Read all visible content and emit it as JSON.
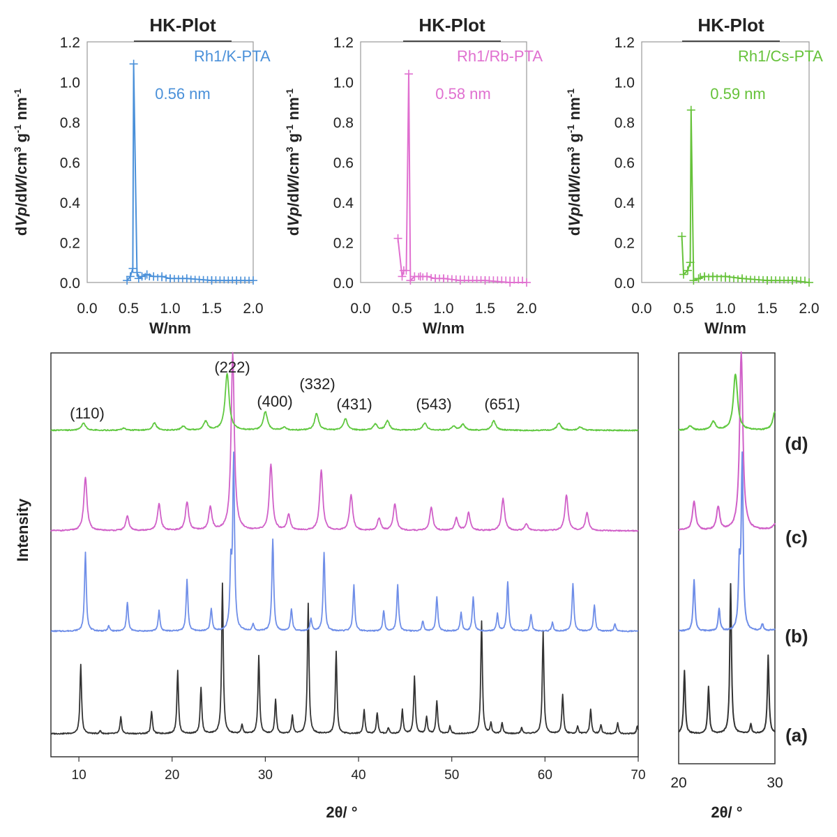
{
  "chart_data": [
    {
      "type": "line",
      "title": "HK-Plot",
      "xlabel": "W/nm",
      "ylabel_parts": [
        "d",
        "Vp",
        "/d",
        "W",
        "/cm",
        "3",
        " g",
        "-1",
        " nm",
        "-1"
      ],
      "xlim": [
        0.0,
        2.0
      ],
      "ylim": [
        0.0,
        1.2
      ],
      "xticks": [
        "0.0",
        "0.5",
        "1.0",
        "1.5",
        "2.0"
      ],
      "yticks": [
        "0.0",
        "0.2",
        "0.4",
        "0.6",
        "0.8",
        "1.0",
        "1.2"
      ],
      "color": "#4a90d9",
      "series": [
        {
          "name": "Rh1/K-PTA",
          "x": [
            0.48,
            0.52,
            0.55,
            0.56,
            0.6,
            0.62,
            0.66,
            0.72,
            0.8,
            0.9,
            1.0,
            1.2,
            1.5,
            1.8,
            2.0
          ],
          "y": [
            0.01,
            0.03,
            0.07,
            1.09,
            0.05,
            0.02,
            0.03,
            0.04,
            0.03,
            0.03,
            0.02,
            0.02,
            0.01,
            0.01,
            0.01
          ]
        }
      ],
      "annotation": "0.56 nm"
    },
    {
      "type": "line",
      "title": "HK-Plot",
      "xlabel": "W/nm",
      "ylabel_parts": [
        "d",
        "Vp",
        "/d",
        "W",
        "/cm",
        "3",
        " g",
        "-1",
        " nm",
        "-1"
      ],
      "xlim": [
        0.0,
        2.0
      ],
      "ylim": [
        0.0,
        1.2
      ],
      "xticks": [
        "0.0",
        "0.5",
        "1.0",
        "1.5",
        "2.0"
      ],
      "yticks": [
        "0.0",
        "0.2",
        "0.4",
        "0.6",
        "0.8",
        "1.0",
        "1.2"
      ],
      "color": "#e070d0",
      "series": [
        {
          "name": "Rh1/Rb-PTA",
          "x": [
            0.45,
            0.5,
            0.52,
            0.55,
            0.58,
            0.6,
            0.65,
            0.72,
            0.8,
            0.9,
            1.0,
            1.2,
            1.5,
            1.8,
            2.0
          ],
          "y": [
            0.22,
            0.03,
            0.06,
            0.06,
            1.04,
            0.01,
            0.03,
            0.03,
            0.03,
            0.02,
            0.02,
            0.01,
            0.01,
            0.0,
            0.0
          ]
        }
      ],
      "annotation": "0.58 nm"
    },
    {
      "type": "line",
      "title": "HK-Plot",
      "xlabel": "W/nm",
      "ylabel_parts": [
        "d",
        "Vp",
        "/d",
        "W",
        "/cm",
        "3",
        " g",
        "-1",
        " nm",
        "-1"
      ],
      "xlim": [
        0.0,
        2.0
      ],
      "ylim": [
        0.0,
        1.2
      ],
      "xticks": [
        "0.0",
        "0.5",
        "1.0",
        "1.5",
        "2.0"
      ],
      "yticks": [
        "0.0",
        "0.2",
        "0.4",
        "0.6",
        "0.8",
        "1.0",
        "1.2"
      ],
      "color": "#66c23a",
      "series": [
        {
          "name": "Rh1/Cs-PTA",
          "x": [
            0.48,
            0.5,
            0.55,
            0.58,
            0.59,
            0.62,
            0.68,
            0.75,
            0.85,
            1.0,
            1.2,
            1.5,
            1.8,
            2.0
          ],
          "y": [
            0.23,
            0.04,
            0.06,
            0.1,
            0.86,
            0.01,
            0.02,
            0.03,
            0.03,
            0.03,
            0.02,
            0.01,
            0.01,
            0.0
          ]
        }
      ],
      "annotation": "0.59 nm"
    },
    {
      "type": "line",
      "xlabel": "2θ/ °",
      "ylabel": "Intensity",
      "xlim": [
        7,
        70
      ],
      "xticks": [
        "10",
        "20",
        "30",
        "40",
        "50",
        "60",
        "70"
      ],
      "series": [
        {
          "name": "(a)",
          "color": "#333333",
          "peaks": [
            [
              10.2,
              0.46
            ],
            [
              12.3,
              0.02
            ],
            [
              14.5,
              0.11
            ],
            [
              17.8,
              0.15
            ],
            [
              20.6,
              0.42
            ],
            [
              23.1,
              0.31
            ],
            [
              25.4,
              1.0
            ],
            [
              27.5,
              0.06
            ],
            [
              29.3,
              0.52
            ],
            [
              31.1,
              0.23
            ],
            [
              32.9,
              0.12
            ],
            [
              34.6,
              0.87
            ],
            [
              37.6,
              0.55
            ],
            [
              40.6,
              0.16
            ],
            [
              42.0,
              0.14
            ],
            [
              43.2,
              0.04
            ],
            [
              44.7,
              0.16
            ],
            [
              46.0,
              0.38
            ],
            [
              47.3,
              0.11
            ],
            [
              48.4,
              0.22
            ],
            [
              49.8,
              0.05
            ],
            [
              53.2,
              0.75
            ],
            [
              54.2,
              0.07
            ],
            [
              55.4,
              0.07
            ],
            [
              57.5,
              0.04
            ],
            [
              59.8,
              0.68
            ],
            [
              61.9,
              0.26
            ],
            [
              63.5,
              0.05
            ],
            [
              64.9,
              0.16
            ],
            [
              66.0,
              0.06
            ],
            [
              67.8,
              0.07
            ],
            [
              69.9,
              0.05
            ]
          ]
        },
        {
          "name": "(b)",
          "color": "#6f8ee8",
          "peaks": [
            [
              10.7,
              0.46
            ],
            [
              13.2,
              0.03
            ],
            [
              15.2,
              0.17
            ],
            [
              18.6,
              0.12
            ],
            [
              21.6,
              0.3
            ],
            [
              24.2,
              0.13
            ],
            [
              26.3,
              0.35
            ],
            [
              26.6,
              1.0
            ],
            [
              28.7,
              0.04
            ],
            [
              30.8,
              0.54
            ],
            [
              32.8,
              0.13
            ],
            [
              34.9,
              0.07
            ],
            [
              36.3,
              0.46
            ],
            [
              39.5,
              0.27
            ],
            [
              42.7,
              0.12
            ],
            [
              44.2,
              0.27
            ],
            [
              46.9,
              0.06
            ],
            [
              48.4,
              0.2
            ],
            [
              51.0,
              0.11
            ],
            [
              52.3,
              0.2
            ],
            [
              54.9,
              0.1
            ],
            [
              56.0,
              0.29
            ],
            [
              58.5,
              0.1
            ],
            [
              60.8,
              0.05
            ],
            [
              63.0,
              0.28
            ],
            [
              65.3,
              0.15
            ],
            [
              67.5,
              0.04
            ]
          ]
        },
        {
          "name": "(c)",
          "color": "#d060c8",
          "peaks": [
            [
              10.7,
              0.3
            ],
            [
              15.2,
              0.08
            ],
            [
              18.6,
              0.15
            ],
            [
              21.6,
              0.16
            ],
            [
              24.1,
              0.13
            ],
            [
              26.5,
              1.0
            ],
            [
              30.6,
              0.37
            ],
            [
              32.5,
              0.09
            ],
            [
              36.0,
              0.34
            ],
            [
              39.2,
              0.2
            ],
            [
              42.2,
              0.07
            ],
            [
              43.9,
              0.15
            ],
            [
              47.8,
              0.13
            ],
            [
              50.5,
              0.07
            ],
            [
              51.8,
              0.1
            ],
            [
              55.5,
              0.18
            ],
            [
              58.0,
              0.04
            ],
            [
              62.3,
              0.2
            ],
            [
              64.5,
              0.1
            ]
          ]
        },
        {
          "name": "(d)",
          "color": "#60c840",
          "peaks": [
            [
              10.5,
              0.11
            ],
            [
              14.8,
              0.03
            ],
            [
              18.1,
              0.11
            ],
            [
              21.2,
              0.06
            ],
            [
              23.6,
              0.13
            ],
            [
              25.9,
              0.85
            ],
            [
              30.0,
              0.28
            ],
            [
              32.0,
              0.04
            ],
            [
              35.5,
              0.25
            ],
            [
              38.6,
              0.17
            ],
            [
              41.8,
              0.09
            ],
            [
              43.1,
              0.14
            ],
            [
              47.1,
              0.11
            ],
            [
              50.2,
              0.06
            ],
            [
              51.2,
              0.09
            ],
            [
              54.5,
              0.14
            ],
            [
              61.5,
              0.11
            ],
            [
              63.8,
              0.05
            ]
          ]
        }
      ],
      "annotations": [
        "(110)",
        "(222)",
        "(400)",
        "(332)",
        "(431)",
        "(543)",
        "(651)"
      ]
    },
    {
      "type": "line",
      "xlabel": "2θ/ °",
      "xlim": [
        20,
        30
      ],
      "xticks": [
        "20",
        "30"
      ],
      "series_ref": "zoom of the 2θ range 20–30 for (a)–(d)"
    }
  ]
}
